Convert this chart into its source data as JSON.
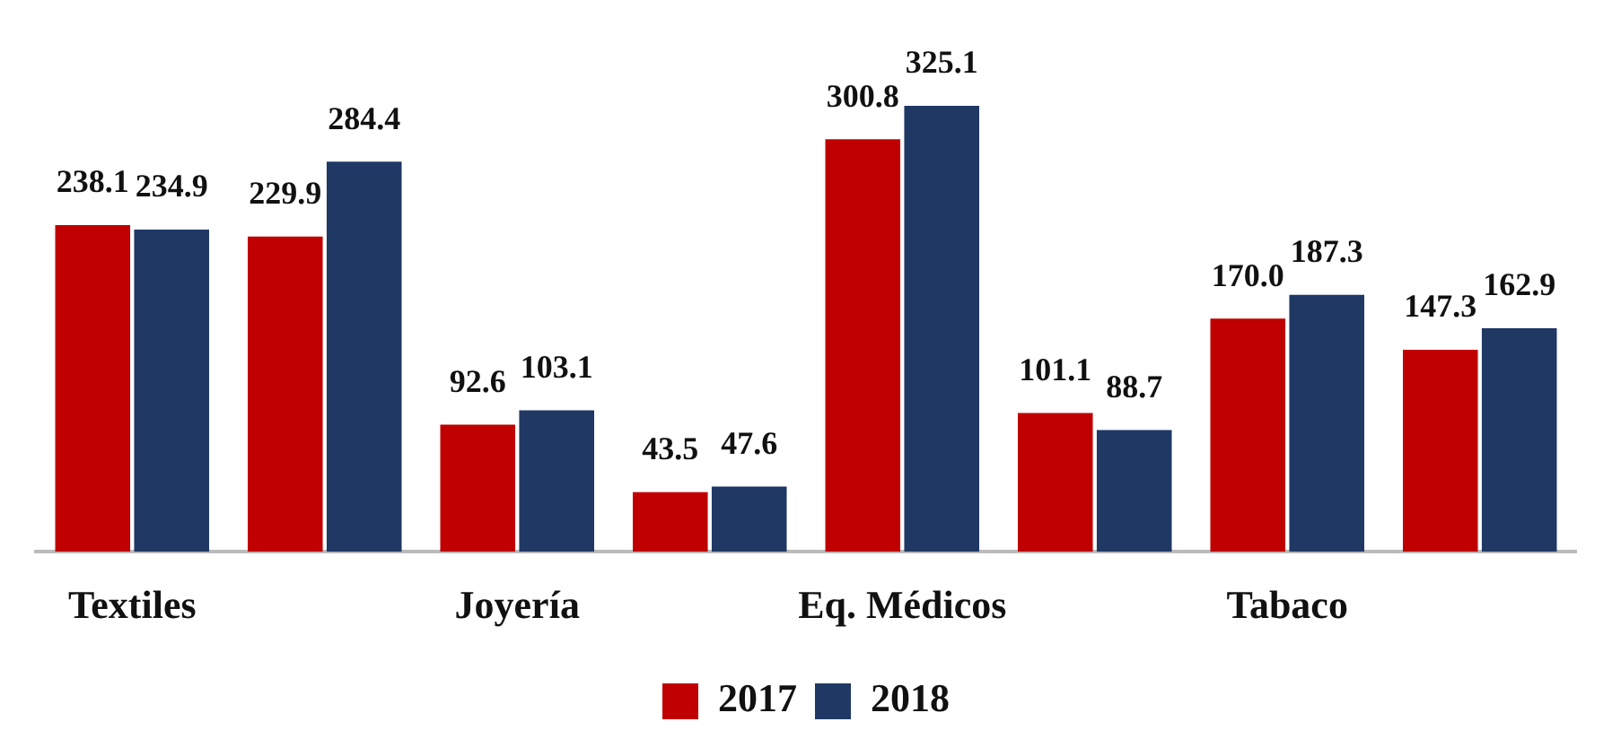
{
  "chart_data": {
    "type": "bar",
    "categories": [
      "Textiles",
      null,
      "Joyería",
      null,
      "Eq. Médicos",
      null,
      "Tabaco",
      null
    ],
    "series": [
      {
        "name": "2017",
        "color": "#c00000",
        "values": [
          238.1,
          229.9,
          92.6,
          43.5,
          300.8,
          101.1,
          170.0,
          147.3
        ],
        "value_labels": [
          "238.1",
          "229.9",
          "92.6",
          "43.5",
          "300.8",
          "101.1",
          "170.0",
          "147.3"
        ]
      },
      {
        "name": "2018",
        "color": "#1f3864",
        "values": [
          234.9,
          284.4,
          103.1,
          47.6,
          325.1,
          88.7,
          187.3,
          162.9
        ],
        "value_labels": [
          "234.9",
          "284.4",
          "103.1",
          "47.6",
          "325.1",
          "88.7",
          "187.3",
          "162.9"
        ]
      }
    ],
    "legend": "bottom",
    "grid": false
  }
}
